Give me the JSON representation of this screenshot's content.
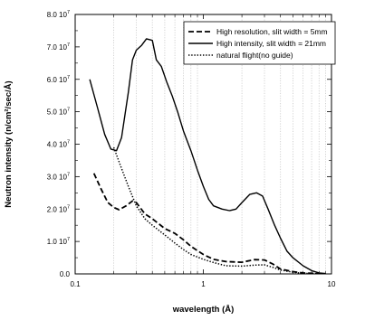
{
  "chart_data": {
    "type": "line",
    "title": "",
    "xlabel": "wavelength (Å)",
    "ylabel": "Neutron intensity (n/cm²/sec/Å)",
    "x_scale": "log",
    "xlim": [
      0.1,
      10
    ],
    "ylim": [
      0,
      80000000
    ],
    "x_ticks": [
      {
        "value": 0.1,
        "label": "0.1"
      },
      {
        "value": 1,
        "label": "1"
      },
      {
        "value": 10,
        "label": "10"
      }
    ],
    "y_ticks": [
      {
        "value": 0,
        "mant": "0.0",
        "exp": ""
      },
      {
        "value": 10000000,
        "mant": "1.0 10",
        "exp": "7"
      },
      {
        "value": 20000000,
        "mant": "2.0 10",
        "exp": "7"
      },
      {
        "value": 30000000,
        "mant": "3.0 10",
        "exp": "7"
      },
      {
        "value": 40000000,
        "mant": "4.0 10",
        "exp": "7"
      },
      {
        "value": 50000000,
        "mant": "5.0 10",
        "exp": "7"
      },
      {
        "value": 60000000,
        "mant": "6.0 10",
        "exp": "7"
      },
      {
        "value": 70000000,
        "mant": "7.0 10",
        "exp": "7"
      },
      {
        "value": 80000000,
        "mant": "8.0 10",
        "exp": "7"
      }
    ],
    "grid": "vertical minor log gridlines",
    "legend_position": "top-right",
    "series": [
      {
        "name": "High resolution, slit width = 5mm",
        "style": "dashed",
        "color": "#000000",
        "points": [
          [
            0.14,
            31000000
          ],
          [
            0.16,
            26000000
          ],
          [
            0.18,
            22000000
          ],
          [
            0.2,
            20500000
          ],
          [
            0.22,
            19800000
          ],
          [
            0.25,
            21000000
          ],
          [
            0.28,
            22500000
          ],
          [
            0.3,
            22000000
          ],
          [
            0.35,
            18500000
          ],
          [
            0.4,
            17000000
          ],
          [
            0.5,
            14000000
          ],
          [
            0.6,
            12500000
          ],
          [
            0.7,
            10500000
          ],
          [
            0.8,
            8500000
          ],
          [
            1.0,
            6000000
          ],
          [
            1.2,
            4500000
          ],
          [
            1.5,
            3800000
          ],
          [
            2.0,
            3600000
          ],
          [
            2.5,
            4400000
          ],
          [
            3.0,
            4300000
          ],
          [
            3.5,
            3000000
          ],
          [
            4.0,
            1500000
          ],
          [
            5.0,
            700000
          ],
          [
            6.0,
            300000
          ],
          [
            8.0,
            100000
          ]
        ]
      },
      {
        "name": "High intensity, slit width = 21mm",
        "style": "solid",
        "color": "#000000",
        "points": [
          [
            0.13,
            60000000
          ],
          [
            0.15,
            51000000
          ],
          [
            0.17,
            43000000
          ],
          [
            0.19,
            38500000
          ],
          [
            0.21,
            38000000
          ],
          [
            0.23,
            42000000
          ],
          [
            0.26,
            56000000
          ],
          [
            0.28,
            66000000
          ],
          [
            0.3,
            69000000
          ],
          [
            0.33,
            70500000
          ],
          [
            0.36,
            72500000
          ],
          [
            0.4,
            72000000
          ],
          [
            0.43,
            66000000
          ],
          [
            0.47,
            64000000
          ],
          [
            0.52,
            59000000
          ],
          [
            0.57,
            55000000
          ],
          [
            0.63,
            50000000
          ],
          [
            0.7,
            44000000
          ],
          [
            0.8,
            38000000
          ],
          [
            0.9,
            32000000
          ],
          [
            1.0,
            27000000
          ],
          [
            1.1,
            23000000
          ],
          [
            1.2,
            21000000
          ],
          [
            1.4,
            20000000
          ],
          [
            1.6,
            19500000
          ],
          [
            1.8,
            20000000
          ],
          [
            2.0,
            22000000
          ],
          [
            2.3,
            24500000
          ],
          [
            2.6,
            25000000
          ],
          [
            2.9,
            24000000
          ],
          [
            3.2,
            20000000
          ],
          [
            3.6,
            15000000
          ],
          [
            4.0,
            11000000
          ],
          [
            4.5,
            7000000
          ],
          [
            5.0,
            5000000
          ],
          [
            6.0,
            2500000
          ],
          [
            7.0,
            1000000
          ],
          [
            8.0,
            300000
          ],
          [
            9.0,
            100000
          ]
        ]
      },
      {
        "name": "natural flight(no guide)",
        "style": "dotted",
        "color": "#000000",
        "points": [
          [
            0.2,
            39000000
          ],
          [
            0.23,
            32500000
          ],
          [
            0.26,
            27000000
          ],
          [
            0.3,
            21000000
          ],
          [
            0.35,
            17000000
          ],
          [
            0.4,
            15000000
          ],
          [
            0.5,
            12000000
          ],
          [
            0.6,
            9500000
          ],
          [
            0.7,
            7500000
          ],
          [
            0.8,
            6000000
          ],
          [
            1.0,
            4500000
          ],
          [
            1.2,
            3500000
          ],
          [
            1.5,
            2500000
          ],
          [
            2.0,
            2400000
          ],
          [
            2.5,
            2700000
          ],
          [
            3.0,
            2800000
          ],
          [
            3.5,
            2000000
          ],
          [
            4.0,
            1200000
          ],
          [
            5.0,
            500000
          ],
          [
            6.0,
            200000
          ],
          [
            8.0,
            50000
          ]
        ]
      }
    ]
  }
}
